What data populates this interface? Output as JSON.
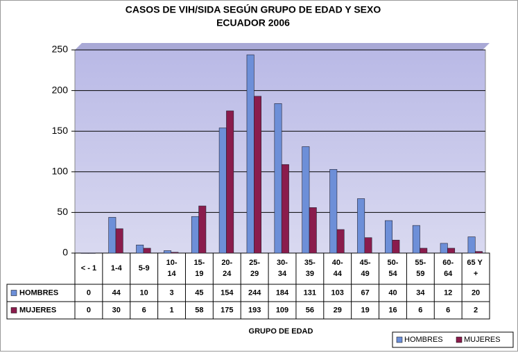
{
  "chart_data": {
    "type": "bar",
    "title": "CASOS DE VIH/SIDA SEGÚN GRUPO DE EDAD Y SEXO",
    "subtitle": "ECUADOR 2006",
    "x_label": "GRUPO DE EDAD",
    "categories": [
      "< - 1",
      "1-4",
      "5-9",
      "10-14",
      "15-19",
      "20-24",
      "25-29",
      "30-34",
      "35-39",
      "40-44",
      "45-49",
      "50-54",
      "55-59",
      "60-64",
      "65 Y +"
    ],
    "series": [
      {
        "name": "HOMBRES",
        "color": "#6d8fd8",
        "values": [
          0,
          44,
          10,
          3,
          45,
          154,
          244,
          184,
          131,
          103,
          67,
          40,
          34,
          12,
          20
        ]
      },
      {
        "name": "MUJERES",
        "color": "#8a1c4c",
        "values": [
          0,
          30,
          6,
          1,
          58,
          175,
          193,
          109,
          56,
          29,
          19,
          16,
          6,
          6,
          2
        ]
      }
    ],
    "ylim": [
      0,
      250
    ],
    "yticks": [
      0,
      50,
      100,
      150,
      200,
      250
    ],
    "grid": true,
    "legend": "bottom-right"
  }
}
